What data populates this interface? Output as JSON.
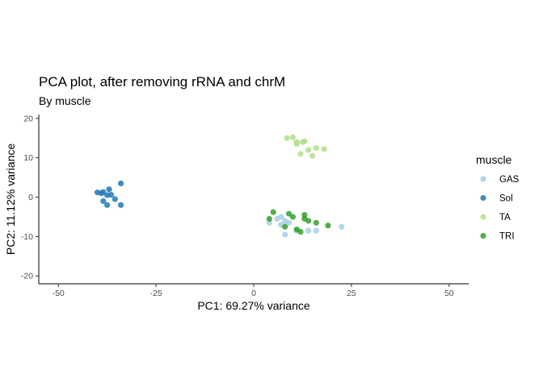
{
  "chart_data": {
    "type": "scatter",
    "title": "PCA plot, after removing rRNA and chrM",
    "subtitle": "By muscle",
    "xlabel": "PC1: 69.27% variance",
    "ylabel": "PC2: 11.12% variance",
    "xlim": [
      -55,
      55
    ],
    "ylim": [
      -22,
      21
    ],
    "xticks": [
      -50,
      -25,
      0,
      25,
      50
    ],
    "yticks": [
      -20,
      -10,
      0,
      10,
      20
    ],
    "grid": false,
    "legend": {
      "title": "muscle",
      "position": "right"
    },
    "series": [
      {
        "name": "GAS",
        "color": "#A6CEE3",
        "points": [
          [
            6,
            -5.5
          ],
          [
            4,
            -6.5
          ],
          [
            7,
            -7
          ],
          [
            8,
            -6
          ],
          [
            9,
            -6.5
          ],
          [
            8,
            -9.5
          ],
          [
            11,
            -8.5
          ],
          [
            14,
            -8.5
          ],
          [
            16,
            -8.5
          ],
          [
            22.5,
            -7.5
          ],
          [
            7,
            -5
          ]
        ]
      },
      {
        "name": "Sol",
        "color": "#1F78B4",
        "points": [
          [
            -40,
            1.2
          ],
          [
            -39,
            1
          ],
          [
            -38.5,
            1.3
          ],
          [
            -37.5,
            0.5
          ],
          [
            -38.5,
            -1
          ],
          [
            -37,
            2
          ],
          [
            -37.5,
            -2
          ],
          [
            -35.5,
            -0.5
          ],
          [
            -34,
            3.5
          ],
          [
            -34,
            -2
          ],
          [
            -36.5,
            0.6
          ]
        ]
      },
      {
        "name": "TA",
        "color": "#B2DF8A",
        "points": [
          [
            8.5,
            15
          ],
          [
            10,
            15.2
          ],
          [
            11,
            14
          ],
          [
            11,
            13.5
          ],
          [
            12.5,
            14
          ],
          [
            13,
            14.2
          ],
          [
            12,
            11
          ],
          [
            14,
            12
          ],
          [
            15,
            10.5
          ],
          [
            16,
            12.5
          ],
          [
            18,
            12.2
          ]
        ]
      },
      {
        "name": "TRI",
        "color": "#33A02C",
        "points": [
          [
            5,
            -3.8
          ],
          [
            4,
            -5.5
          ],
          [
            9,
            -4.2
          ],
          [
            10,
            -5
          ],
          [
            13,
            -4.5
          ],
          [
            13,
            -5.5
          ],
          [
            14,
            -6
          ],
          [
            16,
            -6.5
          ],
          [
            19,
            -7.2
          ],
          [
            8,
            -7.5
          ],
          [
            12,
            -8.8
          ],
          [
            11,
            -8.2
          ]
        ]
      }
    ]
  }
}
